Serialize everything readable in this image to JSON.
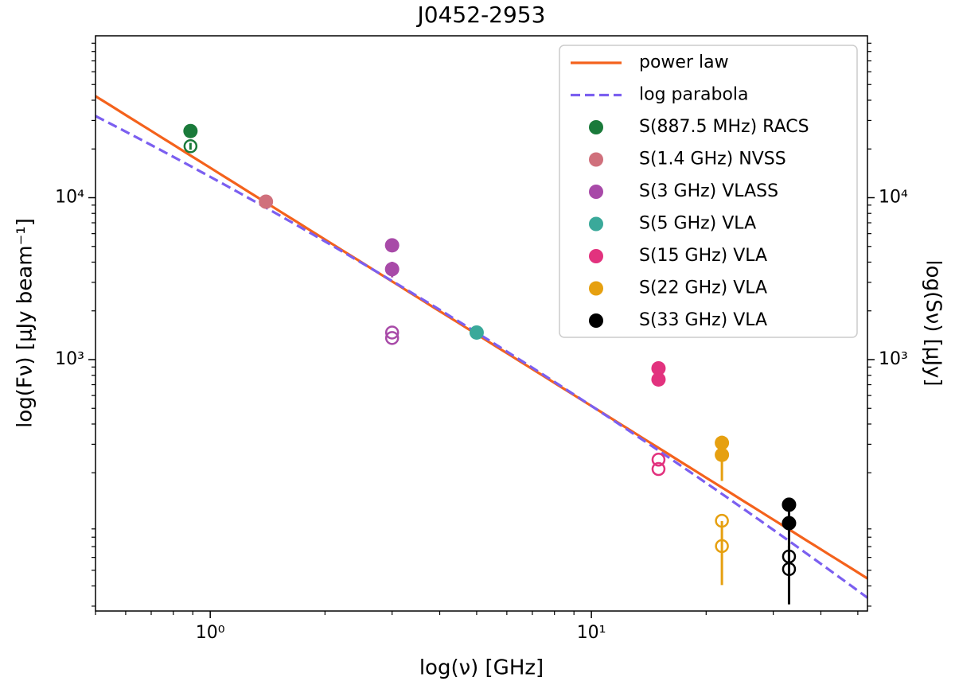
{
  "chart_data": {
    "type": "scatter",
    "title": "J0452-2953",
    "x_label": "log(ν) [GHz]",
    "y_label": "log(Fν) [μJy beam⁻¹]",
    "y2_label": "log(Sν) [μJy]",
    "log_x": true,
    "log_y": true,
    "xlim": [
      0.5,
      53
    ],
    "ylim": [
      28,
      100000
    ],
    "y2lim": [
      28,
      100000
    ],
    "xticks": [
      {
        "value": 1,
        "label": "10⁰"
      },
      {
        "value": 10,
        "label": "10¹"
      }
    ],
    "yticks": [
      {
        "value": 1000,
        "label": "10³"
      },
      {
        "value": 10000,
        "label": "10⁴"
      }
    ],
    "y2ticks": [
      {
        "value": 1000,
        "label": "10³"
      },
      {
        "value": 10000,
        "label": "10⁴"
      }
    ],
    "xminorticks": [
      0.5,
      0.6,
      0.7,
      0.8,
      0.9,
      2,
      3,
      4,
      5,
      6,
      7,
      8,
      9,
      20,
      30,
      40,
      50
    ],
    "yminorticks": [
      30,
      40,
      50,
      60,
      70,
      80,
      90,
      200,
      300,
      400,
      500,
      600,
      700,
      800,
      900,
      2000,
      3000,
      4000,
      5000,
      6000,
      7000,
      8000,
      9000,
      20000,
      30000,
      40000,
      50000,
      60000,
      70000,
      80000,
      90000
    ],
    "legend": "upper right",
    "fits": [
      {
        "name": "power law",
        "model": "power_law",
        "color": "#f4621c",
        "dashed": false,
        "amplitude": 15300,
        "index": -1.471
      },
      {
        "name": "log parabola",
        "model": "log_parabola",
        "color": "#7b5ff0",
        "dashed": true,
        "a": 4.129,
        "b": -1.287,
        "c": -0.128
      }
    ],
    "series": [
      {
        "name": "S(887.5 MHz) RACS",
        "color": "#1a7a3a",
        "x": [
          0.8875,
          0.8875
        ],
        "values": [
          25800,
          20800
        ],
        "open": [
          false,
          true
        ],
        "yerr": [
          0,
          1000
        ]
      },
      {
        "name": "S(1.4 GHz) NVSS",
        "color": "#d0707c",
        "x": [
          1.4
        ],
        "values": [
          9450
        ],
        "open": [
          false
        ],
        "yerr": [
          0
        ]
      },
      {
        "name": "S(3 GHz) VLASS",
        "color": "#a84aa8",
        "x": [
          3,
          3,
          3,
          3
        ],
        "values": [
          5080,
          3620,
          1470,
          1360
        ],
        "open": [
          false,
          false,
          true,
          true
        ],
        "yerr": [
          0,
          400,
          0,
          0
        ]
      },
      {
        "name": "S(5 GHz) VLA",
        "color": "#3aa99a",
        "x": [
          5
        ],
        "values": [
          1470
        ],
        "open": [
          false
        ],
        "yerr": [
          0
        ]
      },
      {
        "name": "S(15 GHz) VLA",
        "color": "#e2327e",
        "x": [
          15,
          15,
          15,
          15
        ],
        "values": [
          883,
          754,
          241,
          211
        ],
        "open": [
          false,
          false,
          true,
          true
        ],
        "yerr": [
          0,
          0,
          0,
          0
        ]
      },
      {
        "name": "S(22 GHz) VLA",
        "color": "#e6a010",
        "x": [
          22,
          22,
          22,
          22
        ],
        "values": [
          306,
          258,
          101,
          70.5
        ],
        "open": [
          false,
          false,
          true,
          true
        ],
        "yerr": [
          0,
          80,
          0,
          30
        ]
      },
      {
        "name": "S(33 GHz) VLA",
        "color": "#000000",
        "x": [
          33,
          33,
          33,
          33
        ],
        "values": [
          127,
          97.7,
          60.8,
          50.8
        ],
        "open": [
          false,
          false,
          true,
          true
        ],
        "yerr": [
          0,
          40,
          0,
          20
        ]
      }
    ]
  }
}
